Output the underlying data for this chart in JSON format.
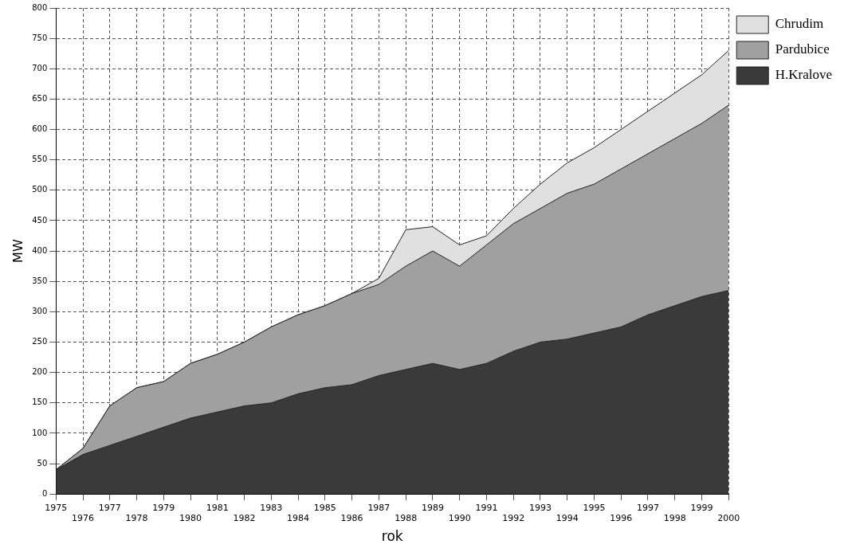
{
  "chart_data": {
    "type": "area",
    "stacked": true,
    "xlabel": "rok",
    "ylabel": "MW",
    "categories": [
      "1975",
      "1976",
      "1977",
      "1978",
      "1979",
      "1980",
      "1981",
      "1982",
      "1983",
      "1984",
      "1985",
      "1986",
      "1987",
      "1988",
      "1989",
      "1990",
      "1991",
      "1992",
      "1993",
      "1994",
      "1995",
      "1996",
      "1997",
      "1998",
      "1999",
      "2000"
    ],
    "series": [
      {
        "name": "H.Kralove",
        "color": "#3a3a3a",
        "values": [
          40,
          65,
          80,
          95,
          110,
          125,
          135,
          145,
          150,
          165,
          175,
          180,
          195,
          205,
          215,
          205,
          215,
          235,
          250,
          255,
          265,
          275,
          295,
          310,
          325,
          335
        ]
      },
      {
        "name": "Pardubice",
        "color": "#a0a0a0",
        "values": [
          0,
          10,
          65,
          80,
          75,
          90,
          95,
          105,
          125,
          130,
          135,
          150,
          150,
          170,
          185,
          170,
          195,
          210,
          220,
          240,
          245,
          260,
          265,
          275,
          285,
          305
        ]
      },
      {
        "name": "Chrudim",
        "color": "#e0e0e0",
        "values": [
          0,
          0,
          0,
          0,
          0,
          0,
          0,
          0,
          0,
          0,
          0,
          0,
          10,
          60,
          40,
          35,
          15,
          25,
          40,
          50,
          60,
          65,
          70,
          75,
          80,
          90
        ]
      }
    ],
    "ylim": [
      0,
      800
    ],
    "yticks": [
      0,
      50,
      100,
      150,
      200,
      250,
      300,
      350,
      400,
      450,
      500,
      550,
      600,
      650,
      700,
      750,
      800
    ],
    "grid": true,
    "legend": "right"
  }
}
